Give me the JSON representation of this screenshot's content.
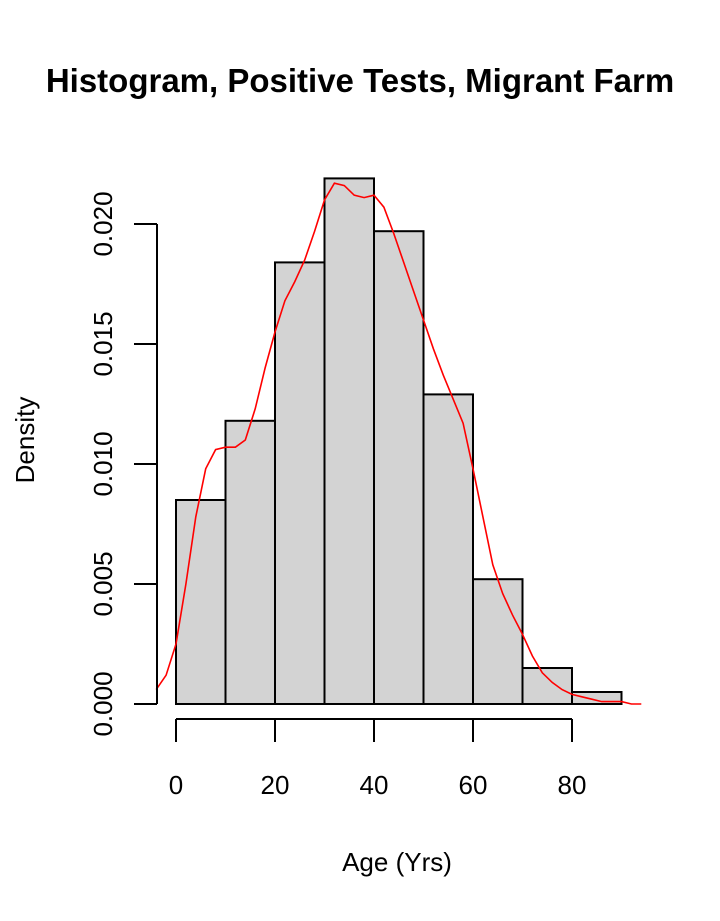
{
  "chart_data": {
    "type": "bar",
    "title": "Histogram, Positive Tests,  Migrant Farm",
    "xlabel": "Age (Yrs)",
    "ylabel": "Density",
    "bin_edges": [
      0,
      10,
      20,
      30,
      40,
      50,
      60,
      70,
      80,
      90
    ],
    "values": [
      0.0085,
      0.0118,
      0.0184,
      0.0219,
      0.0197,
      0.0129,
      0.0052,
      0.0015,
      0.0005
    ],
    "xlim": [
      -4,
      94
    ],
    "ylim": [
      0,
      0.022
    ],
    "xticks": [
      0,
      20,
      40,
      60,
      80
    ],
    "xtick_labels": [
      "0",
      "20",
      "40",
      "60",
      "80"
    ],
    "yticks": [
      0,
      0.005,
      0.01,
      0.015,
      0.02
    ],
    "ytick_labels": [
      "0.000",
      "0.005",
      "0.010",
      "0.015",
      "0.020"
    ],
    "bar_fill": "#d3d3d3",
    "bar_stroke": "#000000",
    "density_curve": {
      "color": "#ff0000",
      "x": [
        -4,
        -2,
        0,
        2,
        4,
        6,
        8,
        10,
        12,
        14,
        16,
        18,
        20,
        22,
        24,
        26,
        28,
        30,
        32,
        34,
        36,
        38,
        40,
        42,
        44,
        46,
        48,
        50,
        52,
        54,
        56,
        58,
        60,
        62,
        64,
        66,
        68,
        70,
        72,
        74,
        76,
        78,
        80,
        82,
        84,
        86,
        88,
        90,
        92,
        94
      ],
      "y": [
        0.0006,
        0.0012,
        0.0025,
        0.005,
        0.0078,
        0.0098,
        0.0106,
        0.0107,
        0.0107,
        0.011,
        0.0123,
        0.014,
        0.0155,
        0.0168,
        0.0176,
        0.0185,
        0.0197,
        0.021,
        0.0217,
        0.0216,
        0.0212,
        0.0211,
        0.0212,
        0.0207,
        0.0196,
        0.0184,
        0.0172,
        0.016,
        0.0148,
        0.0137,
        0.0127,
        0.0117,
        0.0098,
        0.0078,
        0.0058,
        0.0046,
        0.0037,
        0.0029,
        0.002,
        0.0013,
        0.0009,
        0.0006,
        0.0004,
        0.0003,
        0.0002,
        0.0001,
        0.0001,
        0.0001,
        0.0,
        0.0
      ]
    }
  }
}
